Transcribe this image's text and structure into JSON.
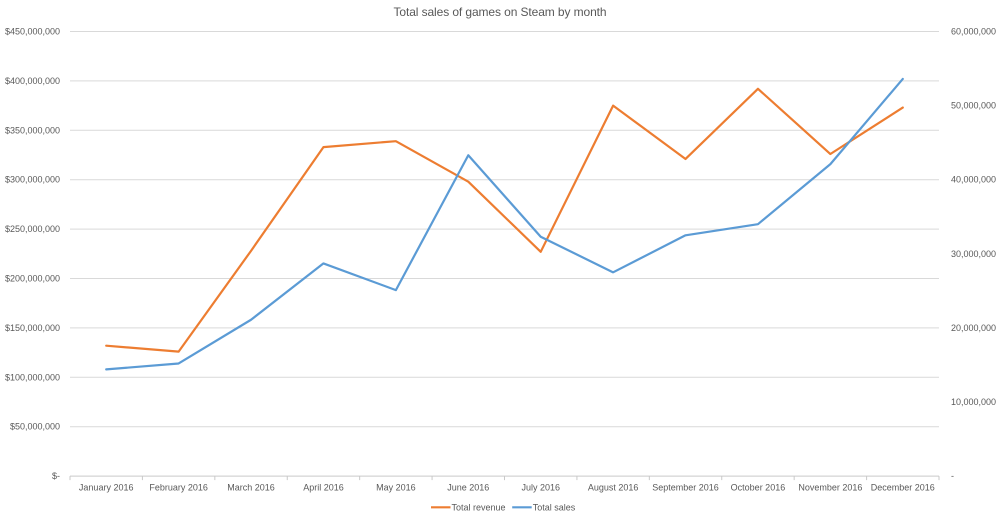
{
  "chart_data": {
    "type": "line",
    "title": "Total sales of games on Steam by month",
    "categories": [
      "January 2016",
      "February 2016",
      "March 2016",
      "April 2016",
      "May 2016",
      "June 2016",
      "July 2016",
      "August 2016",
      "September 2016",
      "October 2016",
      "November 2016",
      "December 2016"
    ],
    "series": [
      {
        "name": "Total revenue",
        "axis": "left",
        "color": "#ED7D31",
        "values": [
          132000000,
          126000000,
          228000000,
          333000000,
          339000000,
          298000000,
          227000000,
          375000000,
          321000000,
          392000000,
          326000000,
          373000000
        ]
      },
      {
        "name": "Total sales",
        "axis": "right",
        "color": "#5B9BD5",
        "values": [
          14400000,
          15200000,
          21100000,
          28700000,
          25100000,
          43300000,
          32300000,
          27500000,
          32500000,
          34000000,
          42100000,
          53600000
        ]
      }
    ],
    "left_axis": {
      "min": 0,
      "max": 450000000,
      "step": 50000000,
      "tick_labels": [
        "$-",
        "$50,000,000",
        "$100,000,000",
        "$150,000,000",
        "$200,000,000",
        "$250,000,000",
        "$300,000,000",
        "$350,000,000",
        "$400,000,000",
        "$450,000,000"
      ]
    },
    "right_axis": {
      "min": 0,
      "max": 60000000,
      "step": 10000000,
      "tick_labels": [
        "-",
        "10,000,000",
        "20,000,000",
        "30,000,000",
        "40,000,000",
        "50,000,000",
        "60,000,000"
      ]
    },
    "legend": [
      {
        "label": "Total revenue",
        "color": "#ED7D31"
      },
      {
        "label": "Total sales",
        "color": "#5B9BD5"
      }
    ],
    "legend_position": "bottom",
    "grid": true,
    "style": {
      "text_color": "#595959",
      "gridline_color": "#D9D9D9",
      "axis_line_color": "#C9C9C9",
      "background": "#FFFFFF",
      "line_width": 2.2
    }
  }
}
